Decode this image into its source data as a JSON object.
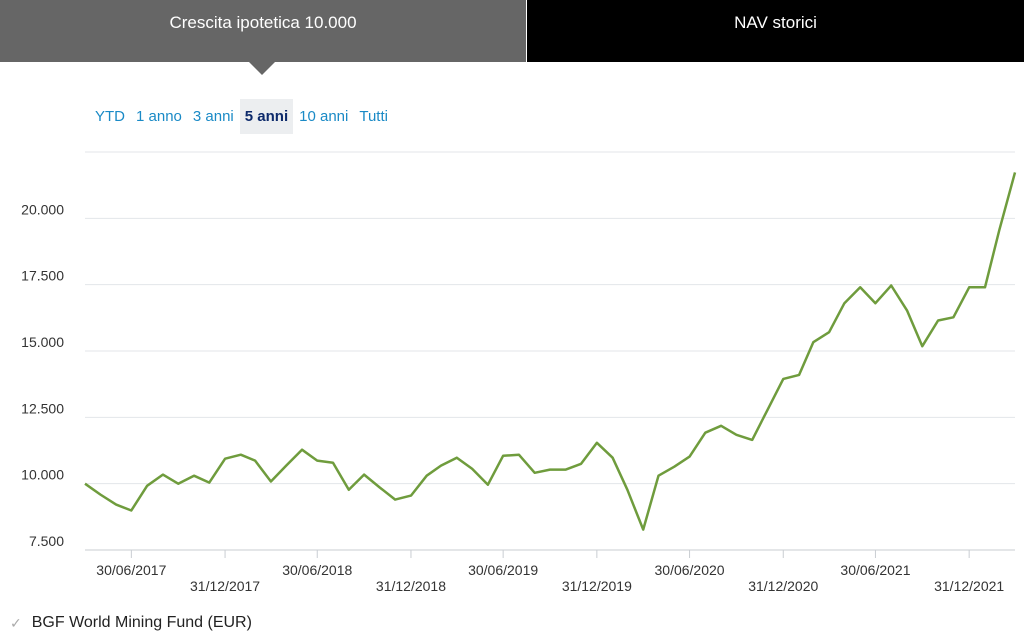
{
  "tabs": [
    "Crescita ipotetica 10.000",
    "NAV storici"
  ],
  "ranges": [
    "YTD",
    "1 anno",
    "3 anni",
    "5 anni",
    "10 anni",
    "Tutti"
  ],
  "selected_range": 3,
  "chart_data": {
    "type": "line",
    "x": [
      "31/03/2017",
      "30/04/2017",
      "31/05/2017",
      "30/06/2017",
      "31/07/2017",
      "31/08/2017",
      "30/09/2017",
      "31/10/2017",
      "30/11/2017",
      "31/12/2017",
      "31/01/2018",
      "28/02/2018",
      "31/03/2018",
      "30/04/2018",
      "31/05/2018",
      "30/06/2018",
      "31/07/2018",
      "31/08/2018",
      "30/09/2018",
      "31/10/2018",
      "30/11/2018",
      "31/12/2018",
      "31/01/2019",
      "28/02/2019",
      "31/03/2019",
      "30/04/2019",
      "31/05/2019",
      "30/06/2019",
      "31/07/2019",
      "31/08/2019",
      "30/09/2019",
      "31/10/2019",
      "30/11/2019",
      "31/12/2019",
      "31/01/2020",
      "29/02/2020",
      "31/03/2020",
      "30/04/2020",
      "31/05/2020",
      "30/06/2020",
      "31/07/2020",
      "31/08/2020",
      "30/09/2020",
      "31/10/2020",
      "30/11/2020",
      "31/12/2020",
      "31/01/2021",
      "28/02/2021",
      "31/03/2021",
      "30/04/2021",
      "31/05/2021",
      "30/06/2021",
      "31/07/2021",
      "31/08/2021",
      "30/09/2021",
      "31/10/2021",
      "30/11/2021",
      "31/12/2021",
      "31/01/2022",
      "28/02/2022",
      "31/03/2022"
    ],
    "series": [
      {
        "name": "BGF World Mining Fund (EUR)",
        "color": "#6f9c3d",
        "values": [
          10000,
          9590,
          9210,
          8990,
          9920,
          10340,
          10000,
          10300,
          10040,
          10940,
          11090,
          10870,
          10080,
          10680,
          11280,
          10870,
          10790,
          9770,
          10340,
          9850,
          9400,
          9550,
          10300,
          10680,
          10980,
          10560,
          9960,
          11050,
          11090,
          10410,
          10530,
          10530,
          10750,
          11540,
          10980,
          9770,
          8270,
          10300,
          10640,
          11020,
          11920,
          12180,
          11840,
          11650,
          12780,
          13950,
          14100,
          15330,
          15710,
          16800,
          17400,
          16800,
          17470,
          16530,
          15180,
          16150,
          16270,
          17400,
          17400,
          19540,
          21730
        ]
      }
    ],
    "xlim": [
      "31/03/2017",
      "31/03/2022"
    ],
    "xticks": [
      "30/06/2017",
      "31/12/2017",
      "30/06/2018",
      "31/12/2018",
      "30/06/2019",
      "31/12/2019",
      "30/06/2020",
      "31/12/2020",
      "30/06/2021",
      "31/12/2021"
    ],
    "ylim": [
      7500,
      22500
    ],
    "yticks": [
      {
        "value": 7500,
        "label": "7.500"
      },
      {
        "value": 10000,
        "label": "10.000"
      },
      {
        "value": 12500,
        "label": "12.500"
      },
      {
        "value": 15000,
        "label": "15.000"
      },
      {
        "value": 17500,
        "label": "17.500"
      },
      {
        "value": 20000,
        "label": "20.000"
      }
    ],
    "grid": true
  }
}
